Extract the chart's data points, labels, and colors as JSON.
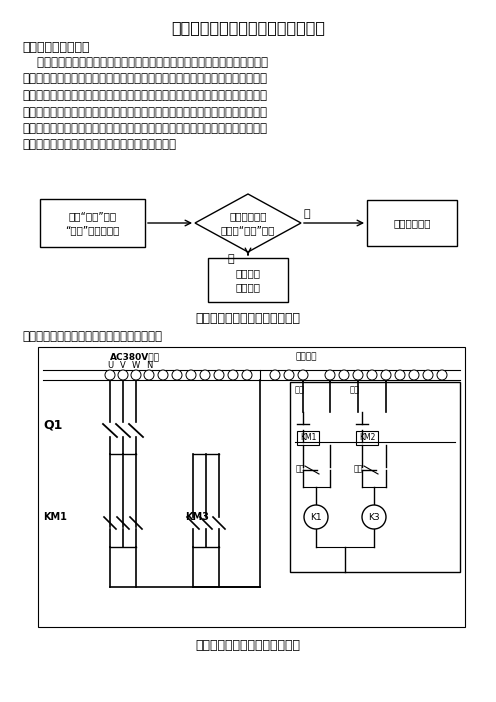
{
  "title": "堆取料机尾车漏斗翻板控制系统改造",
  "section1": "一、功能与原理介绍",
  "para1_lines": [
    "    堆取料机的悬皮跑偏的大部分原因在于尾车漏斗落料点不正，导致物料偏落",
    "在悬皮上，致使悬皮正面皮带向落料点的相反方向跑偏，报警停机，影响生产效",
    "率。调整堆取料机的尾车漏斗翻板的角度是调整尾车皮带物料对悬皮的落料点的",
    "最根本手段，对于悬皮跑偏的预防和纠正有着深刻的意义。尾车漏斗推杆电机主",
    "要通过一个电动推杆的伸缩来实现运动。但是原先的推杆电机控制系统为前进、",
    "后退自锁运动方式，具体的操作流程如图一所示。"
  ],
  "flow_box1_line1": "按下“前进”或者",
  "flow_box1_line2": "“后退”按鈕后自锁",
  "flow_diamond_line1": "是否碰触限位",
  "flow_diamond_line2": "或者按“停止”按鈕",
  "flow_box2": "电动推杆停止",
  "flow_box3_line1": "电动推杆",
  "flow_box3_line2": "自锁运行",
  "flow_yes": "是",
  "flow_no": "否",
  "fig1_caption": "图一：原始电动推杆控制流程图",
  "paragraph2": "电动推杆的相关控制系统电气图如图二所示。",
  "label_ac": "AC380V电源",
  "label_motor": "推杆电机",
  "label_q1": "Q1",
  "label_km1": "KM1",
  "label_km3": "KM3",
  "label_k1": "K1",
  "label_k3": "K3",
  "fig2_caption": "图二：原始电动推杆电气控制图",
  "bg_color": "#ffffff",
  "text_color": "#000000"
}
